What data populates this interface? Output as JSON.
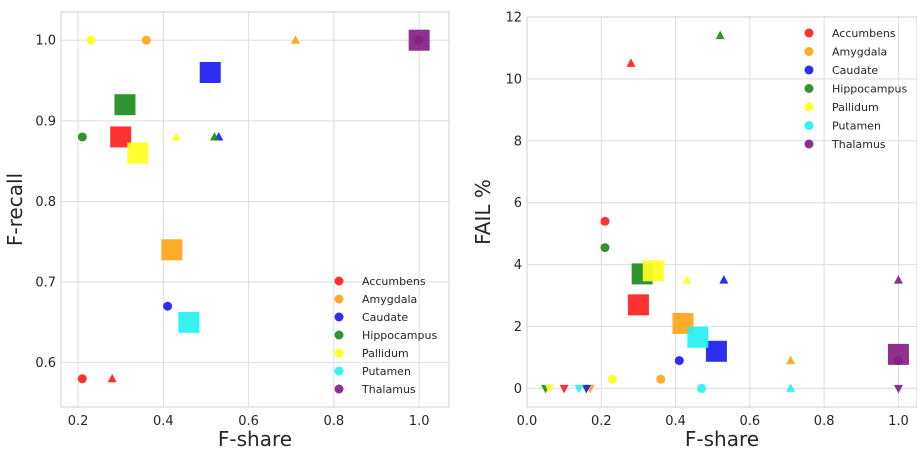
{
  "colors": {
    "Accumbens": "#ff2020",
    "Amygdala": "#ffa519",
    "Caudate": "#1c1cf0",
    "Hippocampus": "#1e8c1e",
    "Pallidum": "#ffff1e",
    "Putamen": "#24f2f2",
    "Thalamus": "#851e85"
  },
  "chart_data": [
    {
      "type": "scatter",
      "xlabel": "F-share",
      "ylabel": "F-recall",
      "xlim": [
        0.16,
        1.07
      ],
      "ylim": [
        0.545,
        1.035
      ],
      "xticks": [
        "0.2",
        "0.4",
        "0.6",
        "0.8",
        "1.0"
      ],
      "yticks": [
        "0.6",
        "0.7",
        "0.8",
        "0.9",
        "1.0"
      ],
      "grid": true,
      "legend_position": "bottom-right",
      "legend": [
        "Accumbens",
        "Amygdala",
        "Caudate",
        "Hippocampus",
        "Pallidum",
        "Putamen",
        "Thalamus"
      ],
      "series": [
        {
          "name": "Accumbens",
          "points": [
            {
              "x": 0.3,
              "y": 0.88,
              "marker": "square"
            },
            {
              "x": 0.21,
              "y": 0.58,
              "marker": "circle"
            },
            {
              "x": 0.28,
              "y": 0.58,
              "marker": "triangle-up"
            }
          ]
        },
        {
          "name": "Amygdala",
          "points": [
            {
              "x": 0.42,
              "y": 0.74,
              "marker": "square"
            },
            {
              "x": 0.36,
              "y": 1.0,
              "marker": "circle"
            },
            {
              "x": 0.71,
              "y": 1.0,
              "marker": "triangle-up"
            }
          ]
        },
        {
          "name": "Caudate",
          "points": [
            {
              "x": 0.51,
              "y": 0.96,
              "marker": "square"
            },
            {
              "x": 0.41,
              "y": 0.67,
              "marker": "circle"
            },
            {
              "x": 0.53,
              "y": 0.88,
              "marker": "triangle-up"
            }
          ]
        },
        {
          "name": "Hippocampus",
          "points": [
            {
              "x": 0.31,
              "y": 0.92,
              "marker": "square"
            },
            {
              "x": 0.21,
              "y": 0.88,
              "marker": "circle"
            },
            {
              "x": 0.52,
              "y": 0.88,
              "marker": "triangle-up"
            }
          ]
        },
        {
          "name": "Pallidum",
          "points": [
            {
              "x": 0.34,
              "y": 0.86,
              "marker": "square"
            },
            {
              "x": 0.23,
              "y": 1.0,
              "marker": "circle"
            },
            {
              "x": 0.43,
              "y": 0.88,
              "marker": "triangle-up"
            }
          ]
        },
        {
          "name": "Putamen",
          "points": [
            {
              "x": 0.46,
              "y": 0.65,
              "marker": "square"
            }
          ]
        },
        {
          "name": "Thalamus",
          "points": [
            {
              "x": 1.0,
              "y": 1.0,
              "marker": "square"
            },
            {
              "x": 1.0,
              "y": 1.0,
              "marker": "circle"
            }
          ]
        }
      ]
    },
    {
      "type": "scatter",
      "xlabel": "F-share",
      "ylabel": "FAIL %",
      "xlim": [
        0.0,
        1.05
      ],
      "ylim": [
        -0.6,
        12.0
      ],
      "xticks": [
        "0.0",
        "0.2",
        "0.4",
        "0.6",
        "0.8",
        "1.0"
      ],
      "yticks": [
        "0",
        "2",
        "4",
        "6",
        "8",
        "10",
        "12"
      ],
      "grid": true,
      "legend_position": "top-right",
      "legend": [
        "Accumbens",
        "Amygdala",
        "Caudate",
        "Hippocampus",
        "Pallidum",
        "Putamen",
        "Thalamus"
      ],
      "series": [
        {
          "name": "Accumbens",
          "points": [
            {
              "x": 0.3,
              "y": 2.7,
              "marker": "square"
            },
            {
              "x": 0.21,
              "y": 5.4,
              "marker": "circle"
            },
            {
              "x": 0.28,
              "y": 10.5,
              "marker": "triangle-up"
            },
            {
              "x": 0.1,
              "y": 0.0,
              "marker": "triangle-down"
            }
          ]
        },
        {
          "name": "Amygdala",
          "points": [
            {
              "x": 0.42,
              "y": 2.1,
              "marker": "square"
            },
            {
              "x": 0.36,
              "y": 0.3,
              "marker": "circle"
            },
            {
              "x": 0.71,
              "y": 0.9,
              "marker": "triangle-up"
            },
            {
              "x": 0.17,
              "y": 0.0,
              "marker": "triangle-down"
            }
          ]
        },
        {
          "name": "Caudate",
          "points": [
            {
              "x": 0.51,
              "y": 1.2,
              "marker": "square"
            },
            {
              "x": 0.41,
              "y": 0.9,
              "marker": "circle"
            },
            {
              "x": 0.53,
              "y": 3.5,
              "marker": "triangle-up"
            },
            {
              "x": 0.16,
              "y": 0.0,
              "marker": "triangle-down"
            }
          ]
        },
        {
          "name": "Hippocampus",
          "points": [
            {
              "x": 0.31,
              "y": 3.7,
              "marker": "square"
            },
            {
              "x": 0.21,
              "y": 4.55,
              "marker": "circle"
            },
            {
              "x": 0.52,
              "y": 11.4,
              "marker": "triangle-up"
            },
            {
              "x": 0.05,
              "y": 0.0,
              "marker": "triangle-down"
            }
          ]
        },
        {
          "name": "Pallidum",
          "points": [
            {
              "x": 0.34,
              "y": 3.8,
              "marker": "square"
            },
            {
              "x": 0.23,
              "y": 0.3,
              "marker": "circle"
            },
            {
              "x": 0.43,
              "y": 3.5,
              "marker": "triangle-up"
            },
            {
              "x": 0.06,
              "y": 0.0,
              "marker": "triangle-down"
            }
          ]
        },
        {
          "name": "Putamen",
          "points": [
            {
              "x": 0.46,
              "y": 1.65,
              "marker": "square"
            },
            {
              "x": 0.47,
              "y": 0.0,
              "marker": "circle"
            },
            {
              "x": 0.71,
              "y": 0.0,
              "marker": "triangle-up"
            },
            {
              "x": 0.14,
              "y": 0.0,
              "marker": "triangle-down"
            }
          ]
        },
        {
          "name": "Thalamus",
          "points": [
            {
              "x": 1.0,
              "y": 1.1,
              "marker": "square"
            },
            {
              "x": 1.0,
              "y": 0.9,
              "marker": "circle"
            },
            {
              "x": 1.0,
              "y": 3.5,
              "marker": "triangle-up"
            },
            {
              "x": 1.0,
              "y": 0.0,
              "marker": "triangle-down"
            }
          ]
        }
      ]
    }
  ]
}
